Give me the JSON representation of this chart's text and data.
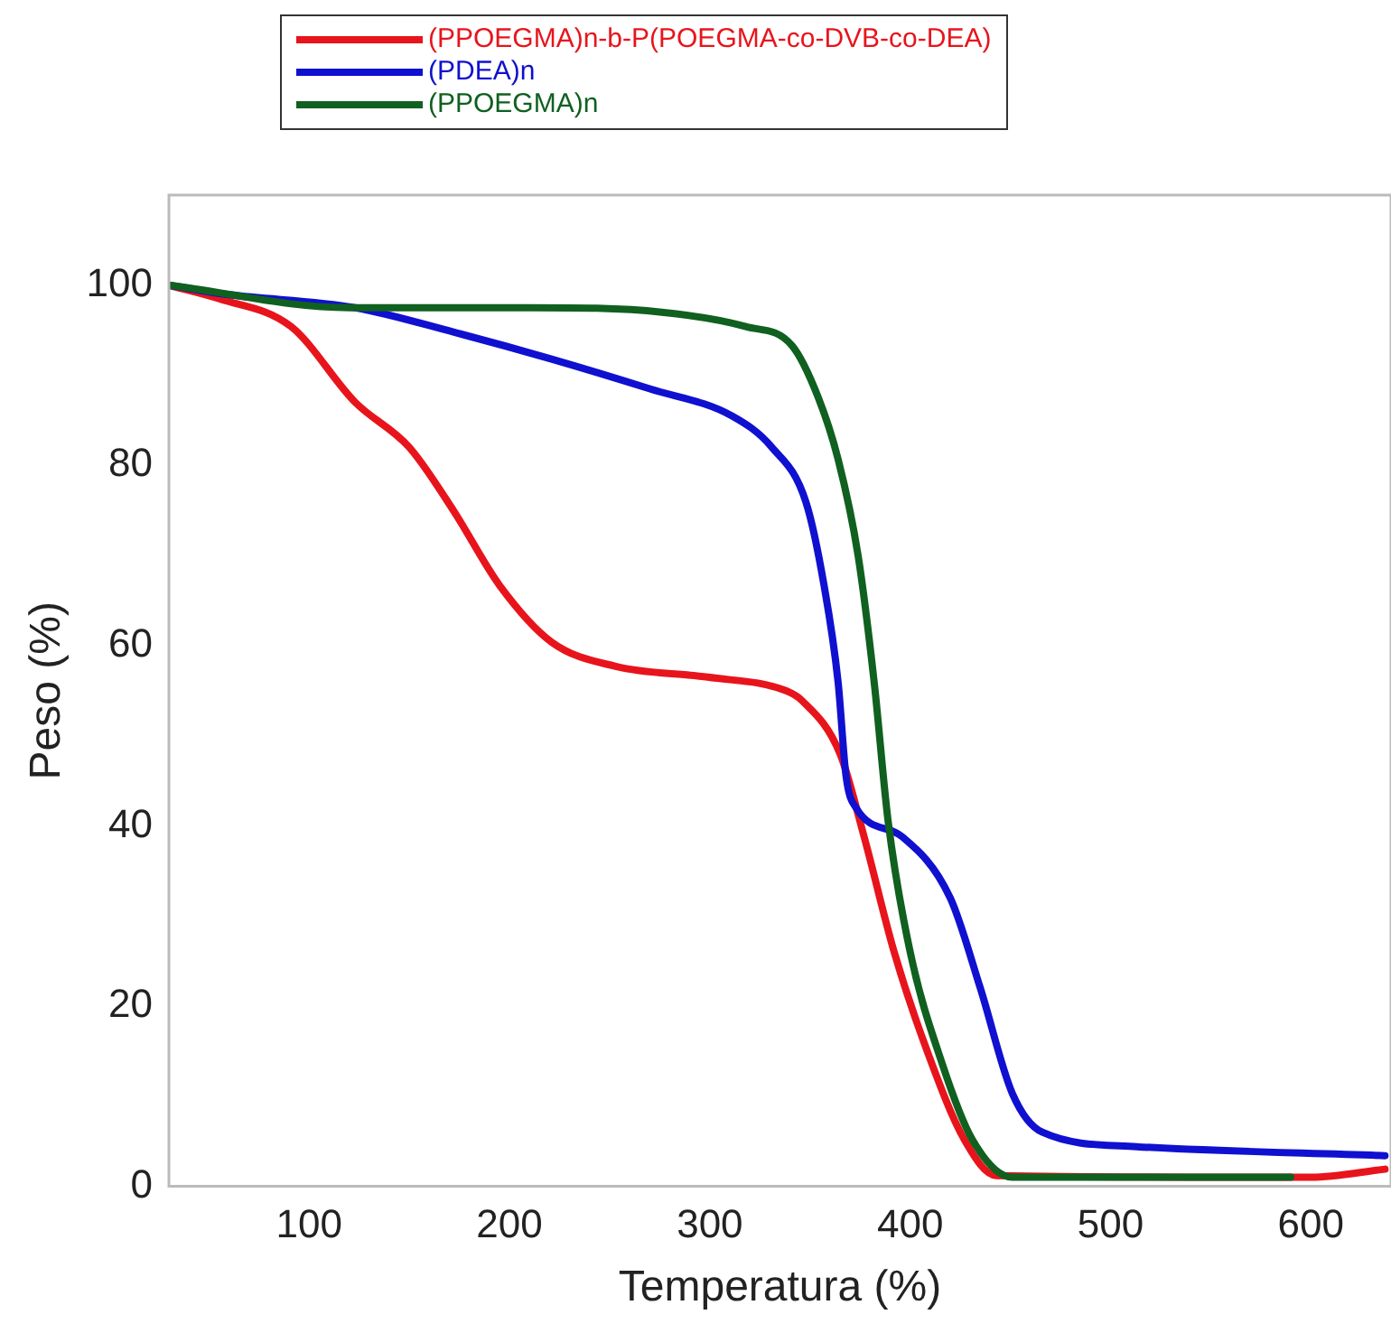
{
  "chart_data": {
    "type": "line",
    "xlabel": "Temperatura (%)",
    "ylabel": "Peso (%)",
    "xlim": [
      30,
      640
    ],
    "xticks": [
      100,
      200,
      300,
      400,
      500,
      600
    ],
    "ylim": [
      0,
      110
    ],
    "yticks": [
      0,
      20,
      40,
      60,
      80,
      100
    ],
    "grid": false,
    "legend": "top left",
    "marker": "none",
    "line_style": "solid",
    "series": [
      {
        "name": "(PPOEGMA)n-b-P(POEGMA-co-DVB-co-DEA)",
        "color": "#e8141c",
        "x": [
          30,
          55,
          91,
          123,
          150,
          172,
          195,
          221,
          253,
          299,
          338,
          346,
          365,
          377,
          392,
          408,
          427,
          443,
          600,
          637
        ],
        "values": [
          100,
          98.5,
          95.4,
          87,
          82,
          75,
          66.7,
          60.4,
          57.7,
          56.5,
          55,
          53.9,
          48,
          38.8,
          26,
          15.3,
          5.2,
          1.2,
          1,
          1.9
        ]
      },
      {
        "name": "(PDEA)n",
        "color": "#1010d0",
        "x": [
          30,
          58,
          123,
          172,
          221,
          270,
          311,
          331,
          348,
          357,
          364,
          368,
          373,
          396,
          420,
          435,
          451,
          466,
          513,
          637
        ],
        "values": [
          100,
          99,
          97.5,
          94.8,
          91.8,
          88.5,
          85.5,
          82,
          75.9,
          66.7,
          56,
          45.5,
          42,
          38.8,
          32,
          22,
          10.3,
          6,
          4.4,
          3.4
        ]
      },
      {
        "name": "(PPOEGMA)n",
        "color": "#106020",
        "x": [
          30,
          120,
          211,
          276,
          318,
          341,
          354,
          364,
          374,
          382,
          389,
          400,
          416,
          431,
          451,
          500,
          590
        ],
        "values": [
          100,
          97.5,
          97.5,
          97,
          95.4,
          93.3,
          87.6,
          80.7,
          70,
          56,
          40.5,
          26,
          13.6,
          5.2,
          1,
          1,
          1
        ]
      }
    ]
  }
}
